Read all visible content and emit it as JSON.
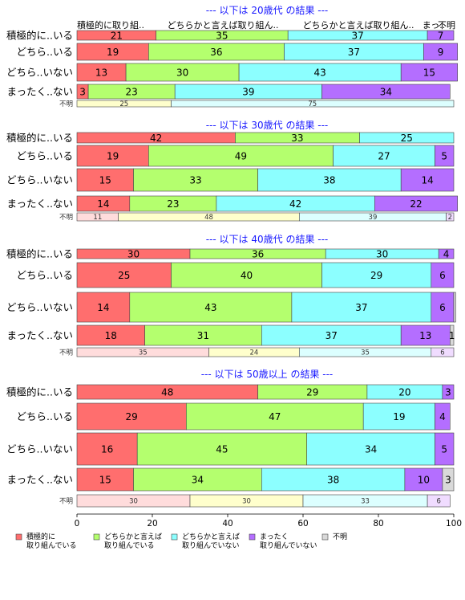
{
  "chart_data": {
    "type": "bar",
    "orientation": "horizontal",
    "stacked": true,
    "xlim": [
      0,
      100
    ],
    "x_ticks": [
      0,
      20,
      40,
      60,
      80,
      100
    ],
    "legend": {
      "placement": "bottom",
      "items": [
        {
          "key": "active",
          "label": [
            "積極的に",
            "取り組んでいる"
          ],
          "color": "#ff6e6e"
        },
        {
          "key": "somewhat_active",
          "label": [
            "どちらかと言えば",
            "取り組んでいる"
          ],
          "color": "#b4ff6e"
        },
        {
          "key": "somewhat_inactive",
          "label": [
            "どちらかと言えば",
            "取り組んでいない"
          ],
          "color": "#8cffff"
        },
        {
          "key": "inactive",
          "label": [
            "まったく",
            "取り組んでいない"
          ],
          "color": "#b46eff"
        },
        {
          "key": "unknown",
          "label": [
            "不明"
          ],
          "color": "#d9d9d9"
        }
      ]
    },
    "top_labels": [
      "積極的に取り組..",
      "どちらかと言えば取り組ん..",
      "どちらかと言えば取り組ん..",
      "まっ..",
      "不明"
    ],
    "panels": [
      {
        "title": "--- 以下は 20歳代 の結果 ---",
        "rows": [
          {
            "label": "積極的に..いる",
            "values": [
              21,
              35,
              37,
              7,
              0
            ],
            "value_labels": [
              "21",
              "35",
              "37",
              "7",
              ""
            ]
          },
          {
            "label": "どちら..いる",
            "values": [
              19,
              36,
              37,
              9,
              0
            ],
            "value_labels": [
              "19",
              "36",
              "37",
              "9",
              ""
            ]
          },
          {
            "label": "どちら..いない",
            "values": [
              13,
              30,
              43,
              15,
              0
            ],
            "value_labels": [
              "13",
              "30",
              "43",
              "15",
              ""
            ]
          },
          {
            "label": "まったく..ない",
            "values": [
              3,
              23,
              39,
              34,
              0
            ],
            "value_labels": [
              "3",
              "23",
              "39",
              "34",
              ""
            ]
          }
        ],
        "unknown_row": {
          "label": "不明",
          "values": [
            0,
            25,
            75,
            0,
            0
          ],
          "value_labels": [
            "",
            "25",
            "75",
            "",
            ""
          ]
        }
      },
      {
        "title": "--- 以下は 30歳代 の結果 ---",
        "rows": [
          {
            "label": "積極的に..いる",
            "values": [
              42,
              33,
              25,
              0,
              0
            ],
            "value_labels": [
              "42",
              "33",
              "25",
              "",
              ""
            ]
          },
          {
            "label": "どちら..いる",
            "values": [
              19,
              49,
              27,
              5,
              0
            ],
            "value_labels": [
              "19",
              "49",
              "27",
              "5",
              ""
            ]
          },
          {
            "label": "どちら..いない",
            "values": [
              15,
              33,
              38,
              14,
              0
            ],
            "value_labels": [
              "15",
              "33",
              "38",
              "14",
              ""
            ]
          },
          {
            "label": "まったく..ない",
            "values": [
              14,
              23,
              42,
              22,
              0
            ],
            "value_labels": [
              "14",
              "23",
              "42",
              "22",
              ""
            ]
          }
        ],
        "unknown_row": {
          "label": "不明",
          "values": [
            11,
            48,
            39,
            2,
            0
          ],
          "value_labels": [
            "11",
            "48",
            "39",
            "2",
            ""
          ]
        }
      },
      {
        "title": "--- 以下は 40歳代 の結果 ---",
        "rows": [
          {
            "label": "積極的に..いる",
            "values": [
              30,
              36,
              30,
              4,
              0
            ],
            "value_labels": [
              "30",
              "36",
              "30",
              "4",
              ""
            ]
          },
          {
            "label": "どちら..いる",
            "values": [
              25,
              40,
              29,
              6,
              0
            ],
            "value_labels": [
              "25",
              "40",
              "29",
              "6",
              ""
            ]
          },
          {
            "label": "どちら..いない",
            "values": [
              14,
              43,
              37,
              6,
              0.5
            ],
            "value_labels": [
              "14",
              "43",
              "37",
              "6",
              ""
            ]
          },
          {
            "label": "まったく..ない",
            "values": [
              18,
              31,
              37,
              13,
              1
            ],
            "value_labels": [
              "18",
              "31",
              "37",
              "13",
              "1"
            ]
          }
        ],
        "unknown_row": {
          "label": "不明",
          "values": [
            35,
            24,
            35,
            6,
            0
          ],
          "value_labels": [
            "35",
            "24",
            "35",
            "6",
            ""
          ]
        }
      },
      {
        "title": "--- 以下は 50歳以上 の結果 ---",
        "rows": [
          {
            "label": "積極的に..いる",
            "values": [
              48,
              29,
              20,
              3,
              0
            ],
            "value_labels": [
              "48",
              "29",
              "20",
              "3",
              ""
            ]
          },
          {
            "label": "どちら..いる",
            "values": [
              29,
              47,
              19,
              4,
              0
            ],
            "value_labels": [
              "29",
              "47",
              "19",
              "4",
              ""
            ]
          },
          {
            "label": "どちら..いない",
            "values": [
              16,
              45,
              34,
              5,
              0
            ],
            "value_labels": [
              "16",
              "45",
              "34",
              "5",
              ""
            ]
          },
          {
            "label": "まったく..ない",
            "values": [
              15,
              34,
              38,
              10,
              3
            ],
            "value_labels": [
              "15",
              "34",
              "38",
              "10",
              "3"
            ]
          }
        ],
        "unknown_row": {
          "label": "不明",
          "values": [
            30,
            30,
            33,
            6,
            0
          ],
          "value_labels": [
            "30",
            "30",
            "33",
            "6",
            ""
          ]
        }
      }
    ]
  }
}
